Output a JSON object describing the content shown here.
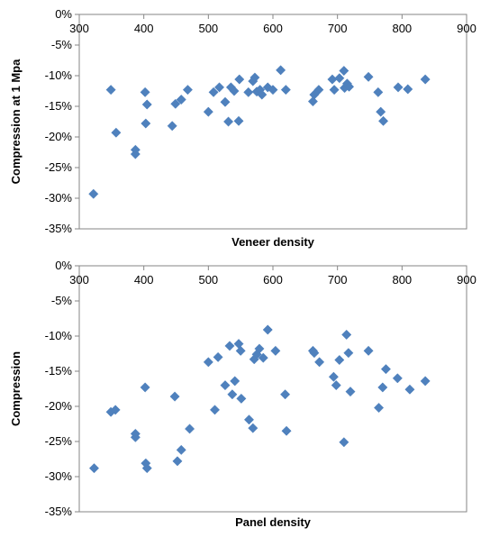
{
  "chart_data": [
    {
      "type": "scatter",
      "title": "",
      "xlabel": "Veneer density",
      "ylabel": "Compression at 1 Mpa",
      "xlim": [
        300,
        900
      ],
      "ylim": [
        -35,
        0
      ],
      "x_ticks": [
        "300",
        "400",
        "500",
        "600",
        "700",
        "800",
        "900"
      ],
      "y_ticks": [
        "0%",
        "-5%",
        "-10%",
        "-15%",
        "-20%",
        "-25%",
        "-30%",
        "-35%"
      ],
      "x_axis_position": "top (at 0%)",
      "grid": false,
      "legend": "none",
      "marker": "diamond",
      "color": "#4f81bd",
      "series": [
        {
          "points": [
            [
              322,
              -29.3
            ],
            [
              349,
              -12.3
            ],
            [
              357,
              -19.3
            ],
            [
              387,
              -22.1
            ],
            [
              387,
              -22.8
            ],
            [
              402,
              -12.7
            ],
            [
              403,
              -17.8
            ],
            [
              405,
              -14.7
            ],
            [
              444,
              -18.2
            ],
            [
              449,
              -14.6
            ],
            [
              458,
              -13.9
            ],
            [
              468,
              -12.3
            ],
            [
              500,
              -15.9
            ],
            [
              508,
              -12.7
            ],
            [
              517,
              -11.9
            ],
            [
              526,
              -14.3
            ],
            [
              531,
              -17.5
            ],
            [
              535,
              -11.9
            ],
            [
              540,
              -12.5
            ],
            [
              547,
              -17.4
            ],
            [
              548,
              -10.6
            ],
            [
              562,
              -12.7
            ],
            [
              569,
              -10.9
            ],
            [
              572,
              -10.3
            ],
            [
              575,
              -12.6
            ],
            [
              580,
              -12.3
            ],
            [
              583,
              -13.1
            ],
            [
              592,
              -11.9
            ],
            [
              600,
              -12.3
            ],
            [
              612,
              -9.1
            ],
            [
              620,
              -12.3
            ],
            [
              662,
              -14.2
            ],
            [
              664,
              -13.1
            ],
            [
              671,
              -12.3
            ],
            [
              692,
              -10.6
            ],
            [
              695,
              -12.3
            ],
            [
              703,
              -10.4
            ],
            [
              710,
              -9.2
            ],
            [
              711,
              -12.0
            ],
            [
              715,
              -11.3
            ],
            [
              718,
              -11.8
            ],
            [
              748,
              -10.2
            ],
            [
              763,
              -12.7
            ],
            [
              767,
              -15.9
            ],
            [
              771,
              -17.4
            ],
            [
              794,
              -11.9
            ],
            [
              809,
              -12.2
            ],
            [
              836,
              -10.6
            ]
          ]
        }
      ]
    },
    {
      "type": "scatter",
      "title": "",
      "xlabel": "Panel density",
      "ylabel": "Compression",
      "xlim": [
        300,
        900
      ],
      "ylim": [
        -35,
        0
      ],
      "x_ticks": [
        "300",
        "400",
        "500",
        "600",
        "700",
        "800",
        "900"
      ],
      "y_ticks": [
        "0%",
        "-5%",
        "-10%",
        "-15%",
        "-20%",
        "-25%",
        "-30%",
        "-35%"
      ],
      "x_axis_position": "top (at 0%)",
      "grid": false,
      "legend": "none",
      "marker": "diamond",
      "color": "#4f81bd",
      "series": [
        {
          "points": [
            [
              323,
              -28.8
            ],
            [
              349,
              -20.8
            ],
            [
              356,
              -20.5
            ],
            [
              387,
              -23.9
            ],
            [
              387,
              -24.4
            ],
            [
              402,
              -17.3
            ],
            [
              403,
              -28.1
            ],
            [
              405,
              -28.8
            ],
            [
              448,
              -18.6
            ],
            [
              452,
              -27.8
            ],
            [
              458,
              -26.2
            ],
            [
              471,
              -23.2
            ],
            [
              500,
              -13.7
            ],
            [
              510,
              -20.5
            ],
            [
              515,
              -13.0
            ],
            [
              526,
              -17.0
            ],
            [
              533,
              -11.4
            ],
            [
              537,
              -18.3
            ],
            [
              541,
              -16.4
            ],
            [
              547,
              -11.1
            ],
            [
              550,
              -12.1
            ],
            [
              551,
              -18.9
            ],
            [
              563,
              -21.9
            ],
            [
              569,
              -23.1
            ],
            [
              571,
              -13.3
            ],
            [
              575,
              -12.6
            ],
            [
              579,
              -11.8
            ],
            [
              585,
              -13.1
            ],
            [
              592,
              -9.1
            ],
            [
              604,
              -12.1
            ],
            [
              619,
              -18.3
            ],
            [
              621,
              -23.5
            ],
            [
              662,
              -12.1
            ],
            [
              664,
              -12.4
            ],
            [
              672,
              -13.7
            ],
            [
              694,
              -15.8
            ],
            [
              698,
              -17.0
            ],
            [
              703,
              -13.4
            ],
            [
              710,
              -25.1
            ],
            [
              714,
              -9.8
            ],
            [
              717,
              -12.4
            ],
            [
              720,
              -17.9
            ],
            [
              748,
              -12.1
            ],
            [
              764,
              -20.2
            ],
            [
              770,
              -17.3
            ],
            [
              775,
              -14.7
            ],
            [
              793,
              -16.0
            ],
            [
              812,
              -17.6
            ],
            [
              836,
              -16.4
            ]
          ]
        }
      ]
    }
  ]
}
